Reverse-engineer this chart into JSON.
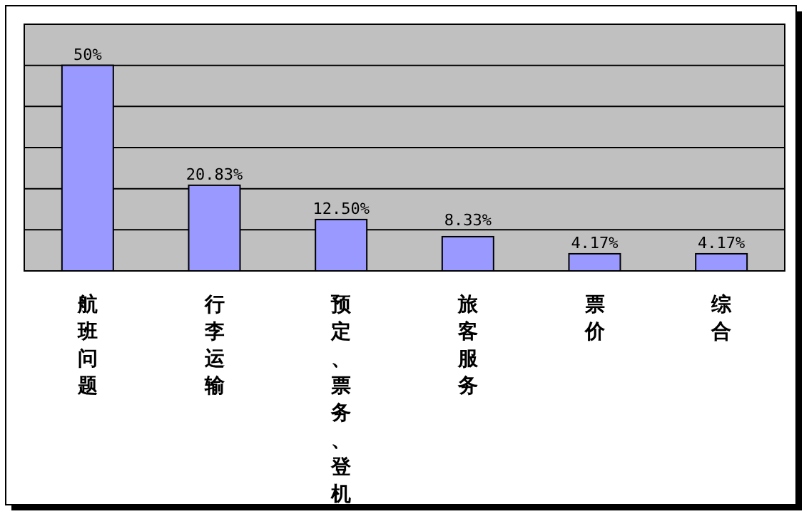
{
  "chart_data": {
    "type": "bar",
    "categories": [
      "航班问题",
      "行李运输",
      "预定、票务、登机",
      "旅客服务",
      "票价",
      "综合"
    ],
    "values": [
      50,
      20.83,
      12.5,
      8.33,
      4.17,
      4.17
    ],
    "value_labels": [
      "50%",
      "20.83%",
      "12.50%",
      "8.33%",
      "4.17%",
      "4.17%"
    ],
    "color": "#9999ff",
    "ylim": [
      0,
      60
    ],
    "yticks": [
      {
        "value": 0,
        "label": null
      },
      {
        "value": 10,
        "label": null
      },
      {
        "value": 20,
        "label": null
      },
      {
        "value": 30,
        "label": null
      },
      {
        "value": 40,
        "label": null
      },
      {
        "value": 50,
        "label": null
      },
      {
        "value": 60,
        "label": null
      }
    ],
    "grid": "y",
    "tick_labels": "x"
  }
}
